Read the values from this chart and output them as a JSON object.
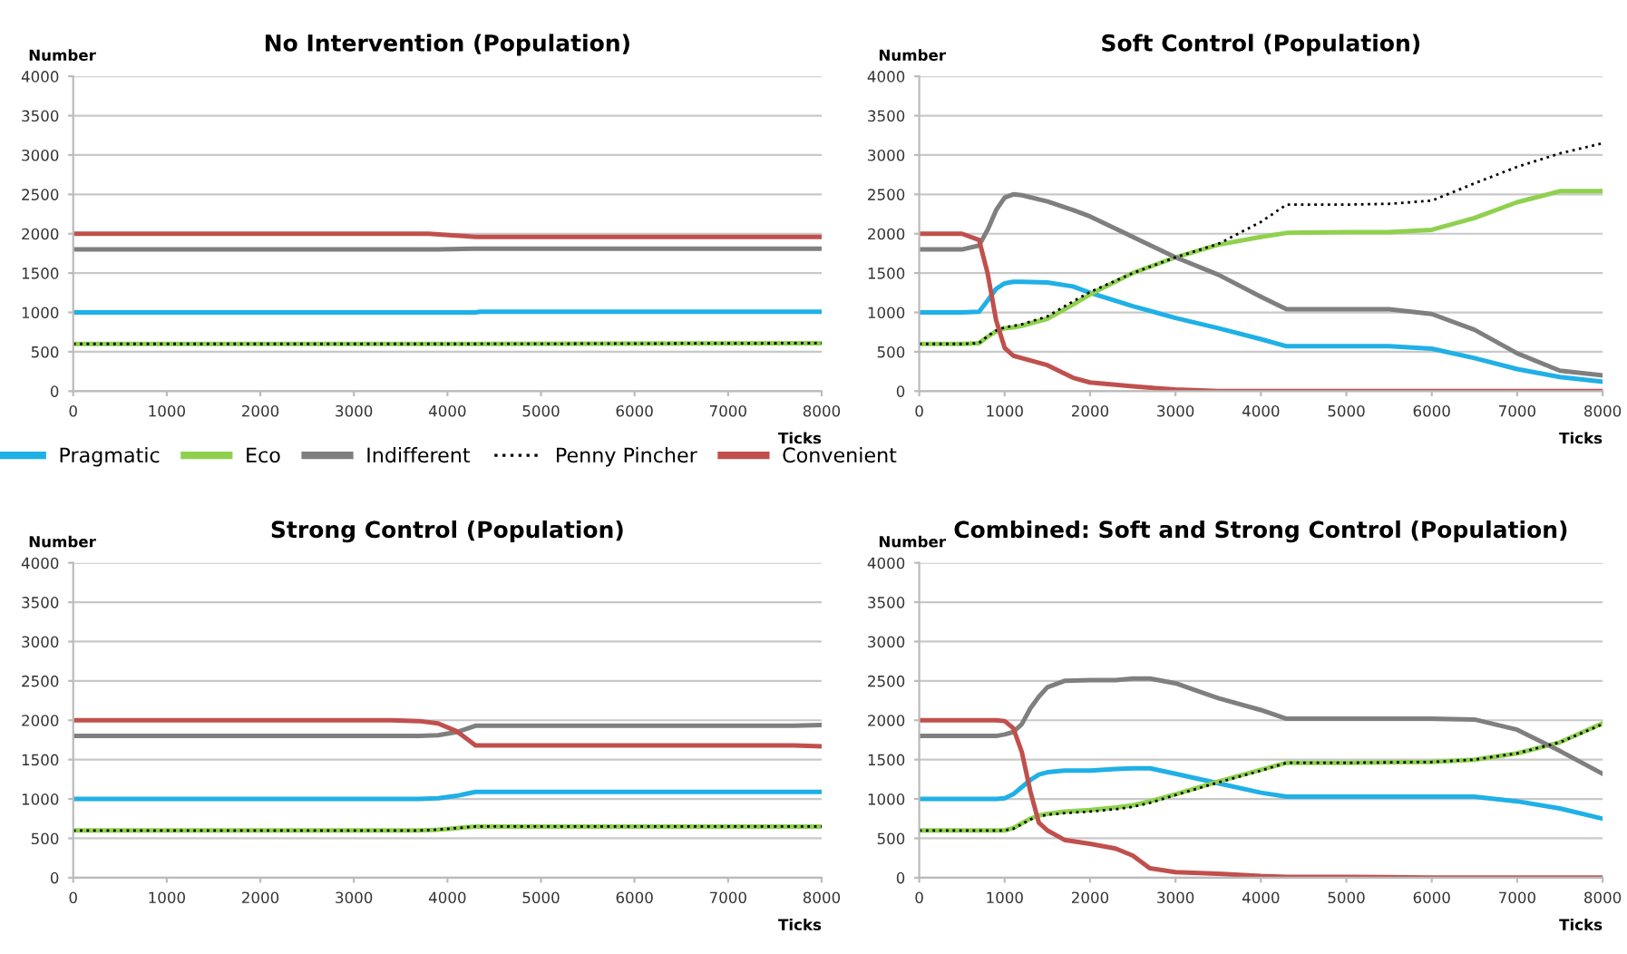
{
  "chart_data": [
    {
      "type": "line",
      "title": "No Intervention (Population)",
      "xlabel": "Ticks",
      "ylabel": "Number",
      "xlim": [
        0,
        8000
      ],
      "xticks": [
        0,
        1000,
        2000,
        3000,
        4000,
        5000,
        6000,
        7000,
        8000
      ],
      "ylim": [
        0,
        4000
      ],
      "yticks": [
        0,
        500,
        1000,
        1500,
        2000,
        2500,
        3000,
        3500,
        4000
      ],
      "grid": "y",
      "legend": "bottom",
      "marker": "none",
      "series": [
        {
          "name": "Pragmatic",
          "color": "#1fb0e6",
          "line_style": "solid",
          "x": [
            0,
            4300,
            4350,
            8000
          ],
          "values": [
            1000,
            1000,
            1010,
            1010
          ]
        },
        {
          "name": "Eco",
          "color": "#8fd14f",
          "line_style": "solid",
          "x": [
            0,
            4300,
            8000
          ],
          "values": [
            600,
            600,
            610
          ]
        },
        {
          "name": "Indifferent",
          "color": "#7f7f7f",
          "line_style": "solid",
          "x": [
            0,
            3900,
            4300,
            8000
          ],
          "values": [
            1800,
            1800,
            1810,
            1810
          ]
        },
        {
          "name": "Penny Pincher",
          "color": "#000000",
          "line_style": "dotted",
          "x": [
            0,
            4300,
            8000
          ],
          "values": [
            600,
            600,
            610
          ]
        },
        {
          "name": "Convenient",
          "color": "#c0504d",
          "line_style": "solid",
          "x": [
            0,
            3800,
            4300,
            8000
          ],
          "values": [
            2000,
            2000,
            1960,
            1960
          ]
        }
      ]
    },
    {
      "type": "line",
      "title": "Soft Control (Population)",
      "xlabel": "Ticks",
      "ylabel": "Number",
      "xlim": [
        0,
        8000
      ],
      "xticks": [
        0,
        1000,
        2000,
        3000,
        4000,
        5000,
        6000,
        7000,
        8000
      ],
      "ylim": [
        0,
        4000
      ],
      "yticks": [
        0,
        500,
        1000,
        1500,
        2000,
        2500,
        3000,
        3500,
        4000
      ],
      "grid": "y",
      "marker": "none",
      "x": [
        0,
        500,
        700,
        800,
        900,
        1000,
        1100,
        1200,
        1500,
        1800,
        2000,
        2500,
        3000,
        3500,
        4000,
        4300,
        5000,
        5500,
        6000,
        6500,
        7000,
        7500,
        8000
      ],
      "series": [
        {
          "color": "#1fb0e6",
          "line_style": "solid",
          "values": [
            1000,
            1000,
            1010,
            1150,
            1300,
            1370,
            1390,
            1390,
            1380,
            1330,
            1250,
            1080,
            930,
            800,
            660,
            570,
            570,
            570,
            540,
            420,
            280,
            180,
            120
          ]
        },
        {
          "color": "#8fd14f",
          "line_style": "solid",
          "values": [
            600,
            600,
            610,
            690,
            760,
            800,
            810,
            830,
            920,
            1100,
            1230,
            1500,
            1700,
            1860,
            1960,
            2010,
            2020,
            2020,
            2050,
            2200,
            2400,
            2540,
            2540
          ]
        },
        {
          "color": "#7f7f7f",
          "line_style": "solid",
          "values": [
            1800,
            1800,
            1850,
            2050,
            2300,
            2460,
            2500,
            2490,
            2410,
            2300,
            2220,
            1960,
            1700,
            1480,
            1200,
            1040,
            1040,
            1040,
            980,
            780,
            480,
            260,
            200
          ]
        },
        {
          "color": "#000000",
          "line_style": "dotted",
          "values": [
            600,
            600,
            610,
            700,
            770,
            810,
            830,
            850,
            950,
            1140,
            1260,
            1500,
            1700,
            1870,
            2150,
            2370,
            2370,
            2380,
            2420,
            2640,
            2850,
            3020,
            3150
          ]
        },
        {
          "color": "#c0504d",
          "line_style": "solid",
          "values": [
            2000,
            2000,
            1920,
            1500,
            900,
            550,
            450,
            420,
            330,
            170,
            110,
            60,
            20,
            0,
            0,
            0,
            0,
            0,
            0,
            0,
            0,
            0,
            0
          ]
        }
      ]
    },
    {
      "type": "line",
      "title": "Strong Control (Population)",
      "xlabel": "Ticks",
      "ylabel": "Number",
      "xlim": [
        0,
        8000
      ],
      "xticks": [
        0,
        1000,
        2000,
        3000,
        4000,
        5000,
        6000,
        7000,
        8000
      ],
      "ylim": [
        0,
        4000
      ],
      "yticks": [
        0,
        500,
        1000,
        1500,
        2000,
        2500,
        3000,
        3500,
        4000
      ],
      "grid": "y",
      "marker": "none",
      "x": [
        0,
        3400,
        3700,
        3900,
        4100,
        4300,
        7700,
        8000
      ],
      "series": [
        {
          "color": "#1fb0e6",
          "line_style": "solid",
          "values": [
            1000,
            1000,
            1000,
            1010,
            1040,
            1090,
            1090,
            1090
          ]
        },
        {
          "color": "#8fd14f",
          "line_style": "solid",
          "values": [
            600,
            600,
            600,
            610,
            630,
            650,
            650,
            650
          ]
        },
        {
          "color": "#7f7f7f",
          "line_style": "solid",
          "values": [
            1800,
            1800,
            1800,
            1810,
            1850,
            1930,
            1930,
            1940
          ]
        },
        {
          "color": "#000000",
          "line_style": "dotted",
          "values": [
            600,
            600,
            600,
            610,
            630,
            650,
            650,
            650
          ]
        },
        {
          "color": "#c0504d",
          "line_style": "solid",
          "values": [
            2000,
            2000,
            1990,
            1960,
            1860,
            1680,
            1680,
            1670
          ]
        }
      ]
    },
    {
      "type": "line",
      "title": "Combined: Soft and Strong Control (Population)",
      "xlabel": "Ticks",
      "ylabel": "Number",
      "xlim": [
        0,
        8000
      ],
      "xticks": [
        0,
        1000,
        2000,
        3000,
        4000,
        5000,
        6000,
        7000,
        8000
      ],
      "ylim": [
        0,
        4000
      ],
      "yticks": [
        0,
        500,
        1000,
        1500,
        2000,
        2500,
        3000,
        3500,
        4000
      ],
      "grid": "y",
      "marker": "none",
      "x": [
        0,
        900,
        1000,
        1100,
        1200,
        1300,
        1400,
        1500,
        1700,
        2000,
        2300,
        2500,
        2700,
        3000,
        3500,
        4000,
        4300,
        5000,
        6000,
        6500,
        7000,
        7500,
        8000
      ],
      "series": [
        {
          "color": "#1fb0e6",
          "line_style": "solid",
          "values": [
            1000,
            1000,
            1010,
            1060,
            1150,
            1240,
            1310,
            1340,
            1360,
            1360,
            1380,
            1390,
            1390,
            1320,
            1200,
            1080,
            1030,
            1030,
            1030,
            1030,
            970,
            880,
            750
          ]
        },
        {
          "color": "#8fd14f",
          "line_style": "solid",
          "values": [
            600,
            600,
            600,
            630,
            690,
            750,
            790,
            810,
            840,
            860,
            890,
            920,
            970,
            1060,
            1220,
            1370,
            1460,
            1460,
            1470,
            1500,
            1580,
            1720,
            1960
          ]
        },
        {
          "color": "#7f7f7f",
          "line_style": "solid",
          "values": [
            1800,
            1800,
            1820,
            1850,
            1950,
            2150,
            2300,
            2420,
            2500,
            2510,
            2510,
            2530,
            2530,
            2470,
            2280,
            2130,
            2020,
            2020,
            2020,
            2010,
            1880,
            1610,
            1320
          ]
        },
        {
          "color": "#000000",
          "line_style": "dotted",
          "values": [
            600,
            600,
            600,
            620,
            680,
            740,
            780,
            800,
            820,
            840,
            870,
            900,
            950,
            1050,
            1210,
            1360,
            1460,
            1460,
            1470,
            1500,
            1580,
            1720,
            1950
          ]
        },
        {
          "color": "#c0504d",
          "line_style": "solid",
          "values": [
            2000,
            2000,
            1990,
            1900,
            1600,
            1100,
            700,
            600,
            480,
            430,
            370,
            280,
            120,
            70,
            50,
            20,
            10,
            10,
            0,
            0,
            0,
            0,
            0
          ]
        }
      ]
    }
  ]
}
